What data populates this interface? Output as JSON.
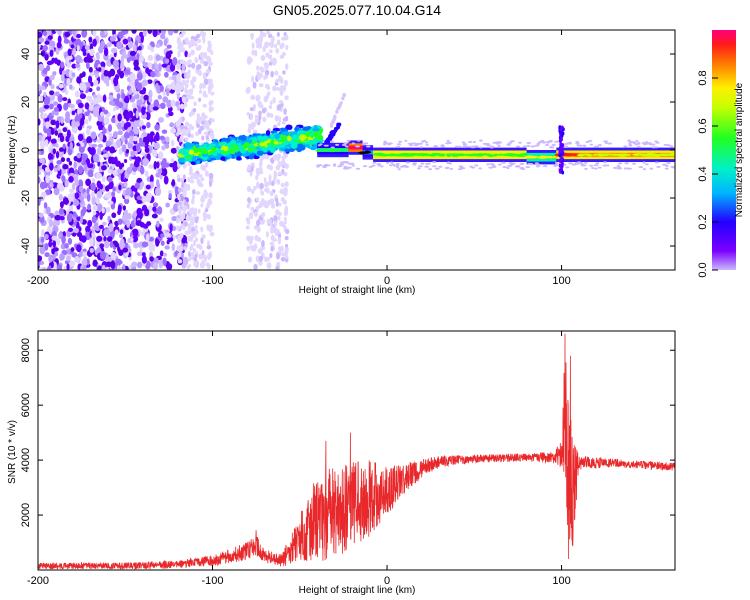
{
  "title": "GN05.2025.077.10.04.G14",
  "colors": {
    "scatter": "#6400ff",
    "ridge_low": "#2200ff",
    "ridge_mid": "#00f0c8",
    "ridge_high": "#ffee00",
    "snr_line": "#e8282a",
    "axis": "#000000"
  },
  "colorbar": {
    "label": "Normalized spectral amplitude",
    "range": [
      0,
      1
    ],
    "ticks": [
      "0.0",
      "0.2",
      "0.4",
      "0.6",
      "0.8"
    ],
    "tick_values": [
      0.0,
      0.2,
      0.4,
      0.6,
      0.8
    ],
    "colormap": "rainbow (purple-blue-cyan-green-yellow-orange-red-magenta)"
  },
  "chart_data": [
    {
      "type": "heatmap",
      "title": "",
      "xlabel": "Height of straight line (km)",
      "ylabel": "Frequency (Hz)",
      "xlim": [
        -200,
        165
      ],
      "ylim": [
        -50,
        50
      ],
      "xticks": [
        -200,
        -100,
        0,
        100
      ],
      "xtick_labels": [
        "-200",
        "-100",
        "0",
        "100"
      ],
      "yticks": [
        -40,
        -20,
        0,
        20,
        40
      ],
      "ytick_labels": [
        "-40",
        "-20",
        "0",
        "20",
        "40"
      ],
      "grid": false,
      "description_points": [
        {
          "x": -200,
          "y_range": [
            -50,
            50
          ],
          "amplitude": 0.2
        },
        {
          "x": -120,
          "y_range": [
            -50,
            50
          ],
          "amplitude": 0.15
        },
        {
          "x": -110,
          "y": 0,
          "amplitude": 0.3
        },
        {
          "x": -80,
          "y": 2,
          "amplitude": 0.45
        },
        {
          "x": -40,
          "y": 7,
          "amplitude": 0.45
        },
        {
          "x": -20,
          "y": 1,
          "amplitude": 0.85
        },
        {
          "x": 0,
          "y": -2,
          "amplitude": 0.55
        },
        {
          "x": 50,
          "y": -2,
          "amplitude": 0.7
        },
        {
          "x": 100,
          "y": -2,
          "amplitude": 0.9
        },
        {
          "x": 160,
          "y": -2,
          "amplitude": 0.65
        }
      ]
    },
    {
      "type": "line",
      "title": "",
      "xlabel": "Height of straight line (km)",
      "ylabel": "SNR (10 * v/v)",
      "xlim": [
        -200,
        165
      ],
      "ylim": [
        0,
        8700
      ],
      "xticks": [
        -200,
        -100,
        0,
        100
      ],
      "xtick_labels": [
        "-200",
        "-100",
        "0",
        "100"
      ],
      "yticks": [
        2000,
        4000,
        6000,
        8000
      ],
      "ytick_labels": [
        "2000",
        "4000",
        "6000",
        "8000"
      ],
      "grid": false,
      "series": [
        {
          "values_envelope": [
            {
              "x": -200,
              "mean": 150,
              "spread": 120
            },
            {
              "x": -150,
              "mean": 150,
              "spread": 120
            },
            {
              "x": -120,
              "mean": 200,
              "spread": 150
            },
            {
              "x": -100,
              "mean": 350,
              "spread": 200
            },
            {
              "x": -90,
              "mean": 500,
              "spread": 250
            },
            {
              "x": -80,
              "mean": 700,
              "spread": 350
            },
            {
              "x": -75,
              "mean": 900,
              "spread": 400
            },
            {
              "x": -70,
              "mean": 500,
              "spread": 250
            },
            {
              "x": -60,
              "mean": 350,
              "spread": 250
            },
            {
              "x": -50,
              "mean": 1200,
              "spread": 900
            },
            {
              "x": -40,
              "mean": 1900,
              "spread": 1600
            },
            {
              "x": -30,
              "mean": 2100,
              "spread": 1700
            },
            {
              "x": -20,
              "mean": 2400,
              "spread": 1600
            },
            {
              "x": -10,
              "mean": 2600,
              "spread": 1400
            },
            {
              "x": 0,
              "mean": 2900,
              "spread": 900
            },
            {
              "x": 10,
              "mean": 3300,
              "spread": 600
            },
            {
              "x": 20,
              "mean": 3700,
              "spread": 350
            },
            {
              "x": 30,
              "mean": 3950,
              "spread": 200
            },
            {
              "x": 50,
              "mean": 4050,
              "spread": 150
            },
            {
              "x": 80,
              "mean": 4100,
              "spread": 150
            },
            {
              "x": 95,
              "mean": 4100,
              "spread": 200
            },
            {
              "x": 100,
              "mean": 4200,
              "spread": 500
            },
            {
              "x": 102,
              "mean": 6000,
              "spread": 2500
            },
            {
              "x": 104,
              "mean": 3000,
              "spread": 2800
            },
            {
              "x": 106,
              "mean": 3000,
              "spread": 2500
            },
            {
              "x": 110,
              "mean": 3900,
              "spread": 250
            },
            {
              "x": 130,
              "mean": 3900,
              "spread": 150
            },
            {
              "x": 165,
              "mean": 3750,
              "spread": 150
            }
          ],
          "peaks": [
            {
              "x": -75,
              "y": 1450
            },
            {
              "x": -35,
              "y": 4700
            },
            {
              "x": -21,
              "y": 5000
            },
            {
              "x": 102,
              "y": 8600
            },
            {
              "x": 105,
              "y": 7800
            },
            {
              "x": 104,
              "y": 400
            }
          ]
        }
      ]
    }
  ]
}
